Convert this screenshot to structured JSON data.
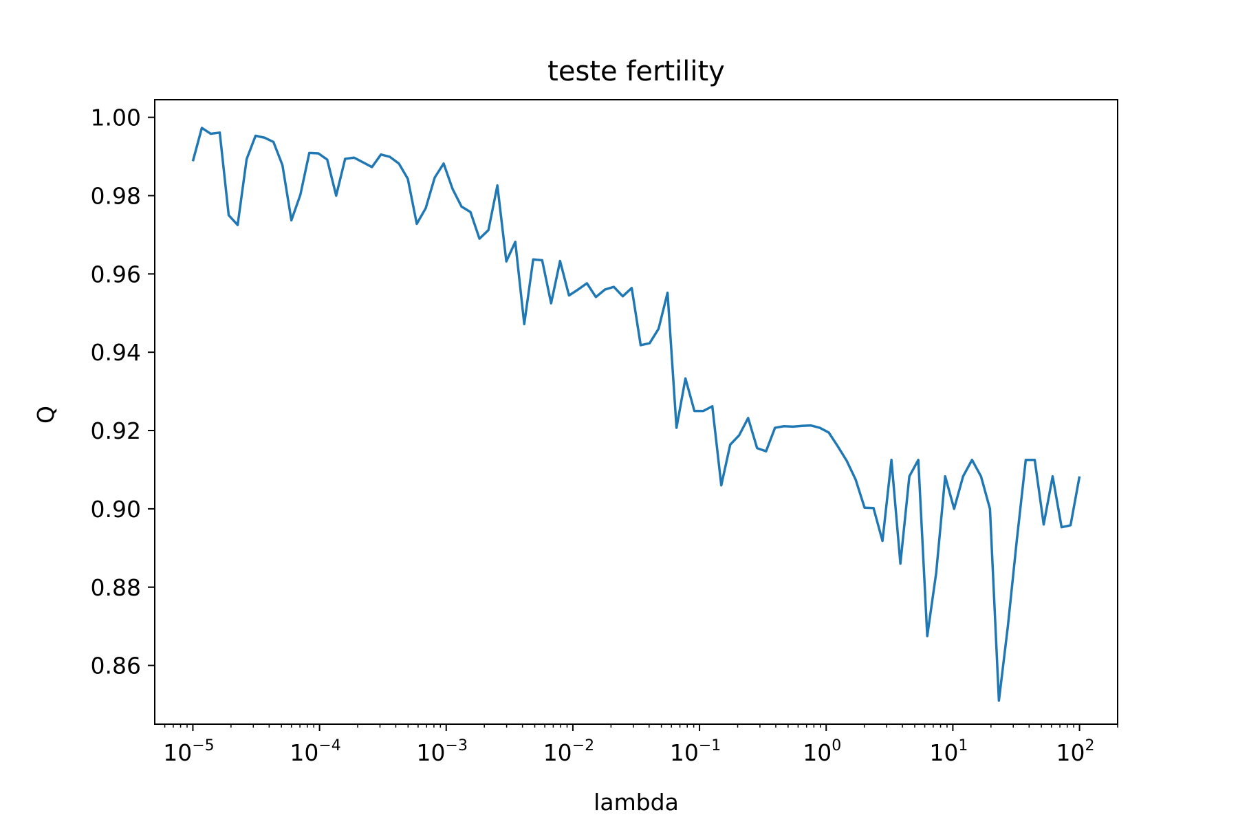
{
  "chart_data": {
    "type": "line",
    "title": "teste fertility",
    "xlabel": "lambda",
    "ylabel": "Q",
    "xscale": "log",
    "xlim": [
      5e-06,
      200
    ],
    "ylim": [
      0.845,
      1.0045
    ],
    "x_ticks": [
      {
        "value": 1e-05,
        "base": "10",
        "exp": "−5"
      },
      {
        "value": 0.0001,
        "base": "10",
        "exp": "−4"
      },
      {
        "value": 0.001,
        "base": "10",
        "exp": "−3"
      },
      {
        "value": 0.01,
        "base": "10",
        "exp": "−2"
      },
      {
        "value": 0.1,
        "base": "10",
        "exp": "−1"
      },
      {
        "value": 1,
        "base": "10",
        "exp": "0"
      },
      {
        "value": 10,
        "base": "10",
        "exp": "1"
      },
      {
        "value": 100,
        "base": "10",
        "exp": "2"
      }
    ],
    "y_ticks": [
      {
        "value": 0.86,
        "label": "0.86"
      },
      {
        "value": 0.88,
        "label": "0.88"
      },
      {
        "value": 0.9,
        "label": "0.90"
      },
      {
        "value": 0.92,
        "label": "0.92"
      },
      {
        "value": 0.94,
        "label": "0.94"
      },
      {
        "value": 0.96,
        "label": "0.96"
      },
      {
        "value": 0.98,
        "label": "0.98"
      },
      {
        "value": 1.0,
        "label": "1.00"
      }
    ],
    "grid": false,
    "line_color": "#1f77b4",
    "x_start": 1e-05,
    "x_end": 100,
    "values": [
      0.9888,
      0.9973,
      0.9958,
      0.9961,
      0.975,
      0.9725,
      0.9893,
      0.9953,
      0.9948,
      0.9937,
      0.9878,
      0.9737,
      0.9802,
      0.9909,
      0.9908,
      0.9892,
      0.98,
      0.9894,
      0.9897,
      0.9885,
      0.9873,
      0.9905,
      0.9899,
      0.9882,
      0.9843,
      0.9728,
      0.9768,
      0.9846,
      0.9882,
      0.9817,
      0.9772,
      0.9758,
      0.969,
      0.9712,
      0.9826,
      0.9632,
      0.9682,
      0.9472,
      0.9637,
      0.9635,
      0.9525,
      0.9633,
      0.9545,
      0.956,
      0.9576,
      0.9541,
      0.956,
      0.9567,
      0.9543,
      0.9564,
      0.9418,
      0.9423,
      0.946,
      0.9552,
      0.9207,
      0.9333,
      0.925,
      0.925,
      0.9262,
      0.906,
      0.9164,
      0.9188,
      0.9232,
      0.9155,
      0.9147,
      0.9207,
      0.9211,
      0.921,
      0.9212,
      0.9213,
      0.9207,
      0.9195,
      0.916,
      0.9123,
      0.9075,
      0.9003,
      0.9002,
      0.8918,
      0.9125,
      0.886,
      0.9083,
      0.9125,
      0.8675,
      0.8837,
      0.9083,
      0.9,
      0.9083,
      0.9125,
      0.9083,
      0.9,
      0.851,
      0.87,
      0.892,
      0.9125,
      0.9125,
      0.896,
      0.9083,
      0.8953,
      0.8958,
      0.9083
    ]
  }
}
